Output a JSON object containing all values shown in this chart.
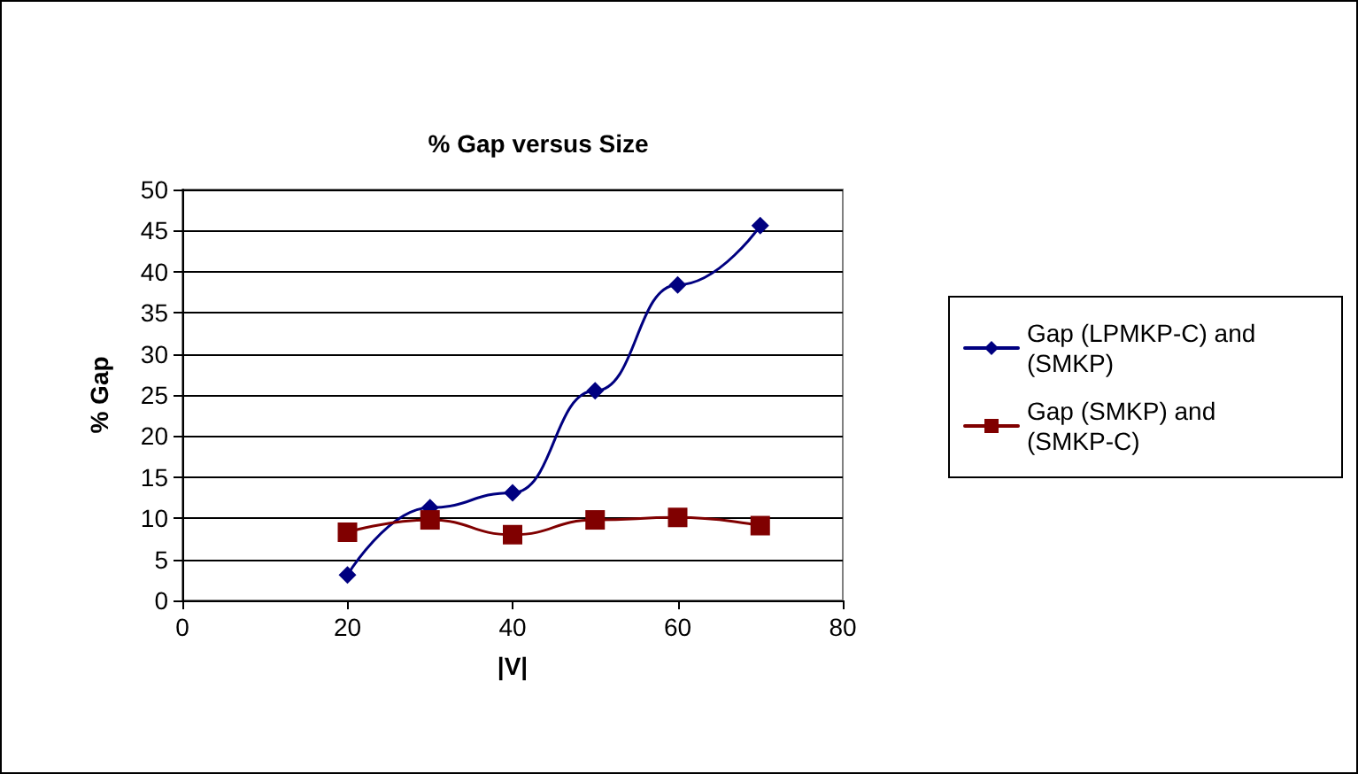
{
  "chart_data": {
    "type": "line",
    "title": "% Gap versus Size",
    "xlabel": "|V|",
    "ylabel": "% Gap",
    "x": [
      20,
      30,
      40,
      50,
      60,
      70
    ],
    "series": [
      {
        "name": "Gap (LPMKP-C) and (SMKP)",
        "color": "#000080",
        "marker": "diamond",
        "values": [
          3.1,
          11.3,
          13.1,
          25.5,
          38.4,
          45.6
        ]
      },
      {
        "name": "Gap (SMKP) and (SMKP-C)",
        "color": "#800000",
        "marker": "square",
        "values": [
          8.3,
          9.8,
          8.0,
          9.8,
          10.1,
          9.1
        ]
      }
    ],
    "xlim": [
      0,
      80
    ],
    "xticks": [
      0,
      20,
      40,
      60,
      80
    ],
    "ylim": [
      0,
      50
    ],
    "yticks": [
      0,
      5,
      10,
      15,
      20,
      25,
      30,
      35,
      40,
      45,
      50
    ],
    "grid": "y",
    "legend": "right"
  }
}
